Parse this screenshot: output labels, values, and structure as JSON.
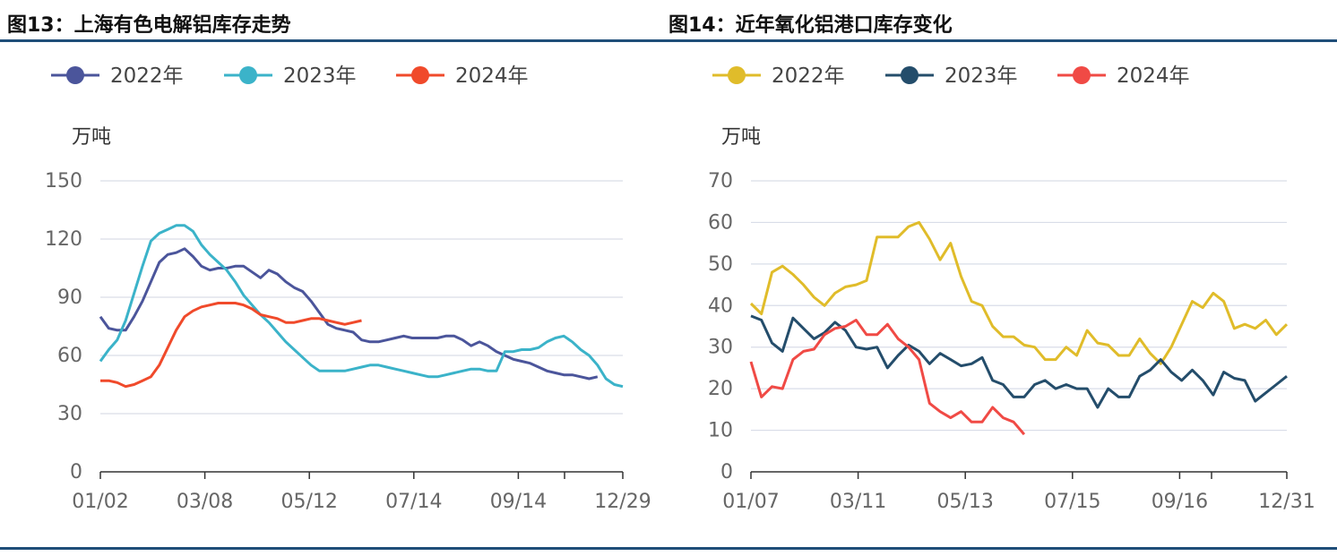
{
  "figures": [
    {
      "title": "图13：上海有色电解铝库存走势"
    },
    {
      "title": "图14：近年氧化铝港口库存变化"
    }
  ],
  "chart_data": [
    {
      "type": "line",
      "unit": "万吨",
      "ylim": [
        0,
        150
      ],
      "yticks": [
        0,
        30,
        60,
        90,
        120,
        150
      ],
      "x_ticklabels": [
        "01/02",
        "03/08",
        "05/12",
        "07/14",
        "09/14",
        "12/29"
      ],
      "grid": true,
      "legend_position": "top-left",
      "series": [
        {
          "name": "2022年",
          "color": "#4b559b",
          "values": [
            80,
            74,
            73,
            73,
            80,
            88,
            98,
            108,
            112,
            113,
            115,
            111,
            106,
            104,
            105,
            105,
            106,
            106,
            103,
            100,
            104,
            102,
            98,
            95,
            93,
            88,
            82,
            76,
            74,
            73,
            72,
            68,
            67,
            67,
            68,
            69,
            70,
            69,
            69,
            69,
            69,
            70,
            70,
            68,
            65,
            67,
            65,
            62,
            60,
            58,
            57,
            56,
            54,
            52,
            51,
            50,
            50,
            49,
            48,
            49
          ]
        },
        {
          "name": "2023年",
          "color": "#3bb3c9",
          "values": [
            57,
            63,
            68,
            78,
            92,
            106,
            119,
            123,
            125,
            127,
            127,
            124,
            117,
            112,
            108,
            104,
            98,
            91,
            86,
            81,
            77,
            72,
            67,
            63,
            59,
            55,
            52,
            52,
            52,
            52,
            53,
            54,
            55,
            55,
            54,
            53,
            52,
            51,
            50,
            49,
            49,
            50,
            51,
            52,
            53,
            53,
            52,
            52,
            62,
            62,
            63,
            63,
            64,
            67,
            69,
            70,
            67,
            63,
            60,
            55,
            48,
            45,
            44
          ]
        },
        {
          "name": "2024年",
          "color": "#f04a2b",
          "values": [
            47,
            47,
            46,
            44,
            45,
            47,
            49,
            55,
            64,
            73,
            80,
            83,
            85,
            86,
            87,
            87,
            87,
            86,
            84,
            81,
            80,
            79,
            77,
            77,
            78,
            79,
            79,
            78,
            77,
            76,
            77,
            78
          ]
        }
      ]
    },
    {
      "type": "line",
      "unit": "万吨",
      "ylim": [
        0,
        70
      ],
      "yticks": [
        0,
        10,
        20,
        30,
        40,
        50,
        60,
        70
      ],
      "x_ticklabels": [
        "01/07",
        "03/11",
        "05/13",
        "07/15",
        "09/16",
        "12/31"
      ],
      "grid": true,
      "legend_position": "top-left",
      "series": [
        {
          "name": "2022年",
          "color": "#e0bc2a",
          "values": [
            40.5,
            38,
            48,
            49.5,
            47.5,
            45,
            42,
            40,
            43,
            44.5,
            45,
            46,
            56.5,
            56.5,
            56.5,
            59,
            60,
            56,
            51,
            55,
            47,
            41,
            40,
            35,
            32.5,
            32.5,
            30.5,
            30,
            27,
            27,
            30,
            28,
            34,
            31,
            30.5,
            28,
            28,
            32,
            28.5,
            26,
            30,
            35.5,
            41,
            39.5,
            43,
            41,
            34.5,
            35.5,
            34.5,
            36.5,
            33,
            35.5
          ]
        },
        {
          "name": "2023年",
          "color": "#244d6b",
          "values": [
            37.5,
            36.5,
            31,
            29,
            37,
            34.5,
            32,
            33.5,
            36,
            34,
            30,
            29.5,
            30,
            25,
            28,
            30.5,
            29,
            26,
            28.5,
            27,
            25.5,
            26,
            27.5,
            22,
            21,
            18,
            18,
            21,
            22,
            20,
            21,
            20,
            20,
            15.5,
            20,
            18,
            18,
            23,
            24.5,
            27,
            24,
            22,
            24.5,
            22,
            18.5,
            24,
            22.5,
            22,
            17,
            19,
            21,
            23
          ]
        },
        {
          "name": "2024年",
          "color": "#f04a45",
          "values": [
            26.5,
            18,
            20.5,
            20,
            27,
            29,
            29.5,
            33,
            34.5,
            35,
            36.5,
            33,
            33,
            35.5,
            32,
            30,
            27,
            16.5,
            14.5,
            13,
            14.5,
            12,
            12,
            15.5,
            13,
            12,
            9
          ]
        }
      ]
    }
  ]
}
